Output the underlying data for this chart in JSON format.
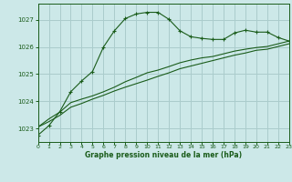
{
  "background_color": "#cce8e8",
  "grid_color": "#aacccc",
  "line_color": "#1a5c1a",
  "x_ticks": [
    0,
    1,
    2,
    3,
    4,
    5,
    6,
    7,
    8,
    9,
    10,
    11,
    12,
    13,
    14,
    15,
    16,
    17,
    18,
    19,
    20,
    21,
    22,
    23
  ],
  "y_ticks": [
    1023,
    1024,
    1025,
    1026,
    1027
  ],
  "xlabel": "Graphe pression niveau de la mer (hPa)",
  "series1": [
    1022.75,
    1023.1,
    1023.62,
    1024.35,
    1024.75,
    1025.1,
    1026.0,
    1026.6,
    1027.05,
    1027.22,
    1027.28,
    1027.28,
    1027.02,
    1026.6,
    1026.38,
    1026.32,
    1026.28,
    1026.28,
    1026.52,
    1026.62,
    1026.55,
    1026.55,
    1026.35,
    1026.22
  ],
  "series2": [
    1023.05,
    1023.35,
    1023.6,
    1023.95,
    1024.08,
    1024.2,
    1024.35,
    1024.52,
    1024.72,
    1024.88,
    1025.05,
    1025.15,
    1025.28,
    1025.42,
    1025.52,
    1025.6,
    1025.65,
    1025.75,
    1025.85,
    1025.92,
    1025.98,
    1026.02,
    1026.12,
    1026.22
  ],
  "series3": [
    1023.05,
    1023.25,
    1023.48,
    1023.78,
    1023.92,
    1024.08,
    1024.22,
    1024.38,
    1024.52,
    1024.65,
    1024.78,
    1024.92,
    1025.05,
    1025.2,
    1025.3,
    1025.4,
    1025.5,
    1025.6,
    1025.7,
    1025.78,
    1025.88,
    1025.92,
    1026.02,
    1026.12
  ],
  "ylim": [
    1022.5,
    1027.6
  ],
  "xlim": [
    0,
    23
  ]
}
